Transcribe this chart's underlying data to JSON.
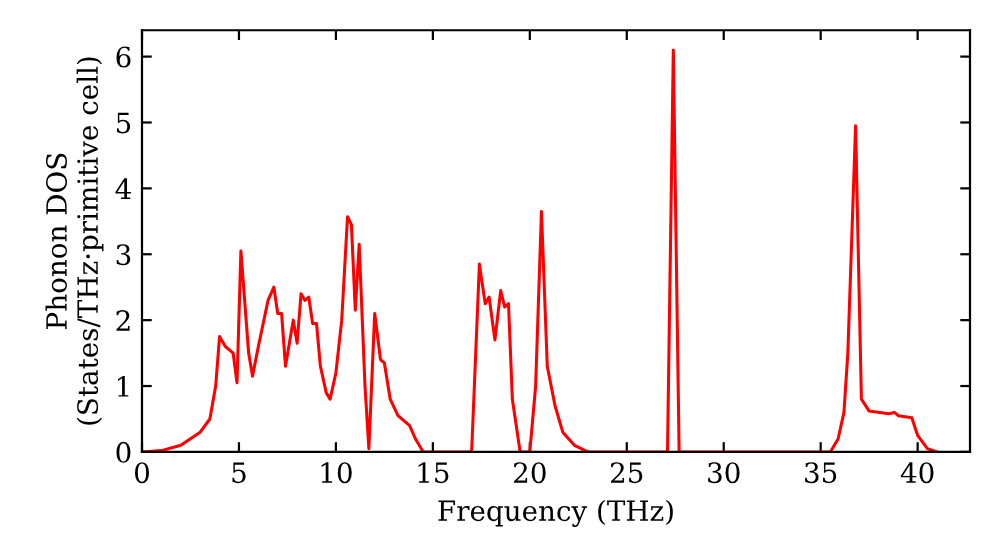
{
  "chart_data": {
    "type": "line",
    "xlabel": "Frequency (THz)",
    "ylabel": "Phonon DOS\n(States/THz·primitive cell)",
    "xlim": [
      0,
      42.7
    ],
    "ylim": [
      0,
      6.4
    ],
    "xticks": [
      0,
      5,
      10,
      15,
      20,
      25,
      30,
      35,
      40
    ],
    "yticks": [
      0,
      1,
      2,
      3,
      4,
      5,
      6
    ],
    "grid": false,
    "marker": "none",
    "line_style": "solid",
    "series": [
      {
        "color": "#ff0000",
        "x": [
          0,
          1,
          2,
          3,
          3.5,
          3.8,
          4.0,
          4.3,
          4.5,
          4.7,
          4.9,
          5.1,
          5.5,
          5.7,
          6.0,
          6.5,
          6.8,
          7.0,
          7.2,
          7.4,
          7.8,
          8.0,
          8.2,
          8.4,
          8.6,
          8.8,
          9.0,
          9.2,
          9.5,
          9.7,
          10.0,
          10.3,
          10.6,
          10.8,
          11.0,
          11.2,
          11.5,
          11.7,
          12.0,
          12.3,
          12.5,
          12.8,
          13.2,
          13.8,
          14.1,
          14.5,
          17.0,
          17.4,
          17.7,
          17.9,
          18.2,
          18.5,
          18.7,
          18.9,
          19.1,
          19.5,
          20.0,
          20.3,
          20.6,
          20.9,
          21.3,
          21.7,
          22.3,
          23.0,
          27.1,
          27.4,
          27.7,
          35.5,
          35.9,
          36.2,
          36.4,
          36.8,
          37.1,
          37.5,
          38.5,
          38.8,
          39.0,
          39.7,
          40.0,
          40.5,
          41
        ],
        "values": [
          0,
          0.02,
          0.1,
          0.3,
          0.5,
          1.0,
          1.75,
          1.6,
          1.55,
          1.5,
          1.05,
          3.05,
          1.5,
          1.15,
          1.6,
          2.3,
          2.5,
          2.1,
          2.1,
          1.3,
          2.0,
          1.65,
          2.4,
          2.3,
          2.35,
          1.95,
          1.95,
          1.3,
          0.9,
          0.8,
          1.2,
          2.0,
          3.57,
          3.45,
          2.15,
          3.15,
          1.0,
          0.05,
          2.1,
          1.4,
          1.35,
          0.8,
          0.55,
          0.4,
          0.2,
          0.0,
          0.0,
          2.85,
          2.25,
          2.35,
          1.7,
          2.45,
          2.2,
          2.25,
          0.8,
          0.0,
          0.0,
          1.0,
          3.65,
          1.3,
          0.7,
          0.3,
          0.1,
          0.0,
          0.0,
          6.1,
          0.0,
          0.0,
          0.2,
          0.6,
          1.5,
          4.95,
          0.8,
          0.62,
          0.58,
          0.6,
          0.55,
          0.52,
          0.25,
          0.05,
          0
        ]
      }
    ]
  }
}
